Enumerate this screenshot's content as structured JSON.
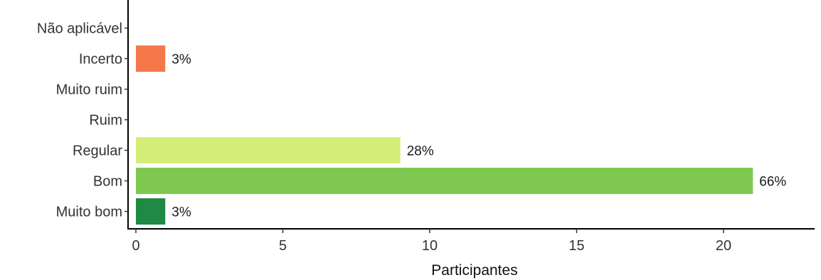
{
  "chart_data": {
    "type": "bar",
    "orientation": "horizontal",
    "categories": [
      "Não aplicável",
      "Incerto",
      "Muito ruim",
      "Ruim",
      "Regular",
      "Bom",
      "Muito bom"
    ],
    "values": [
      0,
      1,
      0,
      0,
      9,
      21,
      1
    ],
    "labels": [
      "",
      "3%",
      "",
      "",
      "28%",
      "66%",
      "3%"
    ],
    "colors": [
      "#ffffff",
      "#f4784a",
      "#ffffff",
      "#ffffff",
      "#d4ed79",
      "#7ec850",
      "#1f8a45"
    ],
    "xlabel": "Participantes",
    "ylabel": "",
    "xlim": [
      0,
      23
    ],
    "xticks": [
      0,
      5,
      10,
      15,
      20
    ],
    "grid": false,
    "legend": "none"
  }
}
